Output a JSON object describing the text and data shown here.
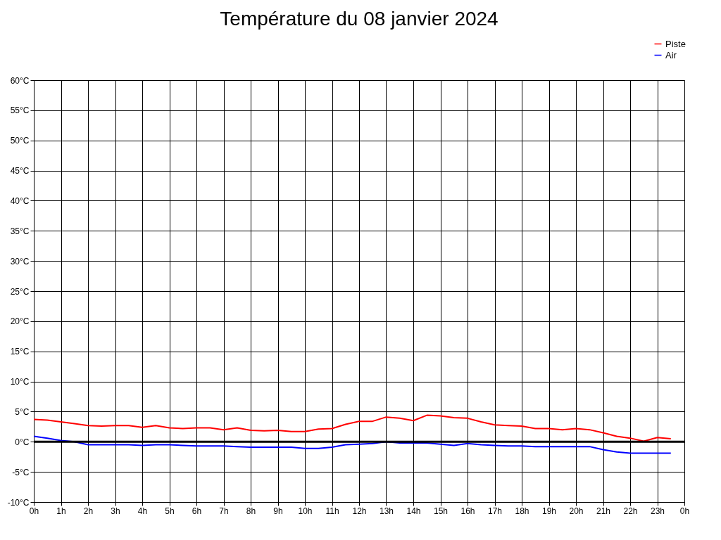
{
  "chart_data": {
    "type": "line",
    "title": "Température du 08 janvier 2024",
    "x": [
      "2024-01-08T00:00",
      "2024-01-08T00:30",
      "2024-01-08T01:00",
      "2024-01-08T01:30",
      "2024-01-08T02:00",
      "2024-01-08T02:30",
      "2024-01-08T03:00",
      "2024-01-08T03:30",
      "2024-01-08T04:00",
      "2024-01-08T04:30",
      "2024-01-08T05:00",
      "2024-01-08T05:30",
      "2024-01-08T06:00",
      "2024-01-08T06:30",
      "2024-01-08T07:00",
      "2024-01-08T07:30",
      "2024-01-08T08:00",
      "2024-01-08T08:30",
      "2024-01-08T09:00",
      "2024-01-08T09:30",
      "2024-01-08T10:00",
      "2024-01-08T10:30",
      "2024-01-08T11:00",
      "2024-01-08T11:30",
      "2024-01-08T12:00",
      "2024-01-08T12:30",
      "2024-01-08T13:00",
      "2024-01-08T13:30",
      "2024-01-08T14:00",
      "2024-01-08T14:30",
      "2024-01-08T15:00",
      "2024-01-08T15:30",
      "2024-01-08T16:00",
      "2024-01-08T16:30",
      "2024-01-08T17:00",
      "2024-01-08T17:30",
      "2024-01-08T18:00",
      "2024-01-08T18:30",
      "2024-01-08T19:00",
      "2024-01-08T19:30",
      "2024-01-08T20:00",
      "2024-01-08T20:30",
      "2024-01-08T21:00",
      "2024-01-08T21:30",
      "2024-01-08T22:00",
      "2024-01-08T22:30",
      "2024-01-08T23:00",
      "2024-01-08T23:30"
    ],
    "series": [
      {
        "name": "Piste",
        "color": "#ff0000",
        "values": [
          3.7,
          3.6,
          3.3,
          3.0,
          2.7,
          2.6,
          2.7,
          2.7,
          2.4,
          2.7,
          2.3,
          2.2,
          2.3,
          2.3,
          2.0,
          2.3,
          1.9,
          1.8,
          1.9,
          1.7,
          1.7,
          2.1,
          2.2,
          2.9,
          3.4,
          3.4,
          4.1,
          3.9,
          3.5,
          4.4,
          4.3,
          4.0,
          3.9,
          3.3,
          2.8,
          2.7,
          2.6,
          2.2,
          2.2,
          2.0,
          2.2,
          2.0,
          1.5,
          0.9,
          0.6,
          0.1,
          0.7,
          0.5
        ]
      },
      {
        "name": "Air",
        "color": "#0000ff",
        "values": [
          0.9,
          0.6,
          0.2,
          0.0,
          -0.5,
          -0.5,
          -0.5,
          -0.5,
          -0.6,
          -0.5,
          -0.5,
          -0.6,
          -0.7,
          -0.7,
          -0.7,
          -0.8,
          -0.9,
          -0.9,
          -0.9,
          -0.9,
          -1.1,
          -1.1,
          -0.9,
          -0.5,
          -0.4,
          -0.3,
          0.0,
          -0.2,
          -0.2,
          -0.2,
          -0.4,
          -0.6,
          -0.3,
          -0.5,
          -0.6,
          -0.7,
          -0.7,
          -0.8,
          -0.8,
          -0.8,
          -0.8,
          -0.8,
          -1.3,
          -1.7,
          -1.9,
          -1.9,
          -1.9,
          -1.9
        ]
      }
    ],
    "xlim": [
      "2024-01-08T00:00",
      "2024-01-09T00:00"
    ],
    "xticks": [
      {
        "value": "2024-01-08T00:00",
        "label": "0h"
      },
      {
        "value": "2024-01-08T01:00",
        "label": "1h"
      },
      {
        "value": "2024-01-08T02:00",
        "label": "2h"
      },
      {
        "value": "2024-01-08T03:00",
        "label": "3h"
      },
      {
        "value": "2024-01-08T04:00",
        "label": "4h"
      },
      {
        "value": "2024-01-08T05:00",
        "label": "5h"
      },
      {
        "value": "2024-01-08T06:00",
        "label": "6h"
      },
      {
        "value": "2024-01-08T07:00",
        "label": "7h"
      },
      {
        "value": "2024-01-08T08:00",
        "label": "8h"
      },
      {
        "value": "2024-01-08T09:00",
        "label": "9h"
      },
      {
        "value": "2024-01-08T10:00",
        "label": "10h"
      },
      {
        "value": "2024-01-08T11:00",
        "label": "11h"
      },
      {
        "value": "2024-01-08T12:00",
        "label": "12h"
      },
      {
        "value": "2024-01-08T13:00",
        "label": "13h"
      },
      {
        "value": "2024-01-08T14:00",
        "label": "14h"
      },
      {
        "value": "2024-01-08T15:00",
        "label": "15h"
      },
      {
        "value": "2024-01-08T16:00",
        "label": "16h"
      },
      {
        "value": "2024-01-08T17:00",
        "label": "17h"
      },
      {
        "value": "2024-01-08T18:00",
        "label": "18h"
      },
      {
        "value": "2024-01-08T19:00",
        "label": "19h"
      },
      {
        "value": "2024-01-08T20:00",
        "label": "20h"
      },
      {
        "value": "2024-01-08T21:00",
        "label": "21h"
      },
      {
        "value": "2024-01-08T22:00",
        "label": "22h"
      },
      {
        "value": "2024-01-08T23:00",
        "label": "23h"
      },
      {
        "value": "2024-01-09T00:00",
        "label": "0h"
      }
    ],
    "ylim": [
      -10,
      60
    ],
    "yticks": [
      {
        "value": -10,
        "label": "-10°C"
      },
      {
        "value": -5,
        "label": "-5°C"
      },
      {
        "value": 0,
        "label": "0°C"
      },
      {
        "value": 5,
        "label": "5°C"
      },
      {
        "value": 10,
        "label": "10°C"
      },
      {
        "value": 15,
        "label": "15°C"
      },
      {
        "value": 20,
        "label": "20°C"
      },
      {
        "value": 25,
        "label": "25°C"
      },
      {
        "value": 30,
        "label": "30°C"
      },
      {
        "value": 35,
        "label": "35°C"
      },
      {
        "value": 40,
        "label": "40°C"
      },
      {
        "value": 45,
        "label": "45°C"
      },
      {
        "value": 50,
        "label": "50°C"
      },
      {
        "value": 55,
        "label": "55°C"
      },
      {
        "value": 60,
        "label": "60°C"
      }
    ],
    "ref_lines": [
      {
        "axis": "y",
        "value": 0,
        "color": "#000000"
      }
    ],
    "grid": true,
    "legend": "top right",
    "line_style": "solid",
    "marker": "none"
  }
}
